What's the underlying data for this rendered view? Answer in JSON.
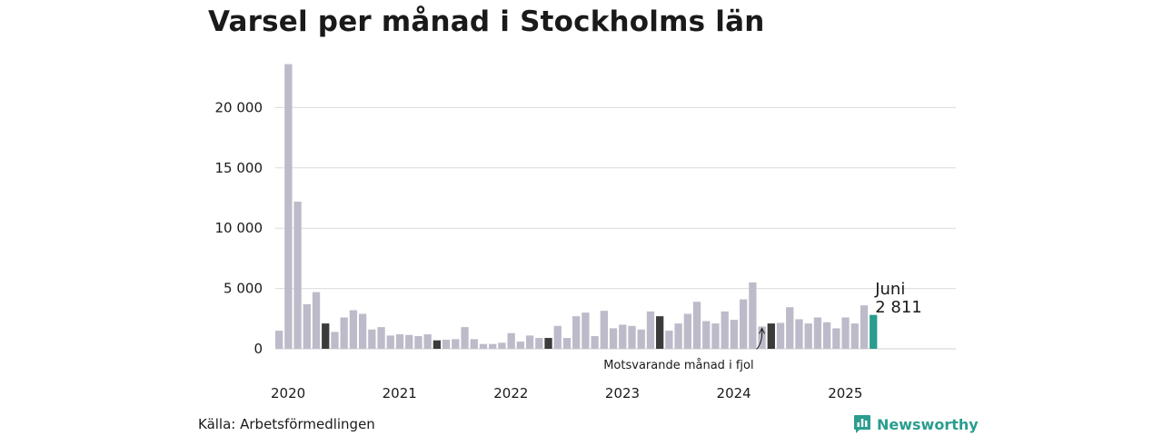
{
  "title": "Varsel per månad i Stockholms län",
  "source": "Källa: Arbetsförmedlingen",
  "brand": {
    "name": "Newsworthy",
    "icon": "bar-chart-logo-icon"
  },
  "colors": {
    "bar": "#bdbbc9",
    "same_month": "#3b3b3b",
    "latest": "#2a9d8f",
    "grid": "#dcdcdc"
  },
  "chart_data": {
    "type": "bar",
    "title": "Varsel per månad i Stockholms län",
    "xlabel": "",
    "ylabel": "",
    "ylim": [
      0,
      25000
    ],
    "yticks": [
      0,
      5000,
      10000,
      15000,
      20000
    ],
    "ytick_labels": [
      "0",
      "5 000",
      "10 000",
      "15 000",
      "20 000"
    ],
    "xtick_labels": [
      "2020",
      "2021",
      "2022",
      "2023",
      "2024",
      "2025"
    ],
    "grid": true,
    "start": "2020-01",
    "values": [
      1500,
      23600,
      12200,
      3700,
      4700,
      2100,
      1400,
      2600,
      3200,
      2900,
      1600,
      1800,
      1100,
      1200,
      1150,
      1050,
      1200,
      700,
      750,
      800,
      1800,
      800,
      400,
      400,
      500,
      1300,
      600,
      1100,
      900,
      900,
      1900,
      900,
      2700,
      3000,
      1050,
      3150,
      1700,
      2000,
      1900,
      1600,
      3100,
      2700,
      1500,
      2100,
      2900,
      3900,
      2300,
      2100,
      3100,
      2400,
      4100,
      5500,
      1850,
      2100,
      2150,
      3450,
      2450,
      2100,
      2600,
      2200,
      1700,
      2600,
      2100,
      3600,
      2811
    ],
    "highlight_same_month_indices": [
      5,
      17,
      29,
      41,
      53
    ],
    "latest": {
      "label": "Juni",
      "value_label": "2 811"
    },
    "annotation": "Motsvarande månad i fjol"
  }
}
